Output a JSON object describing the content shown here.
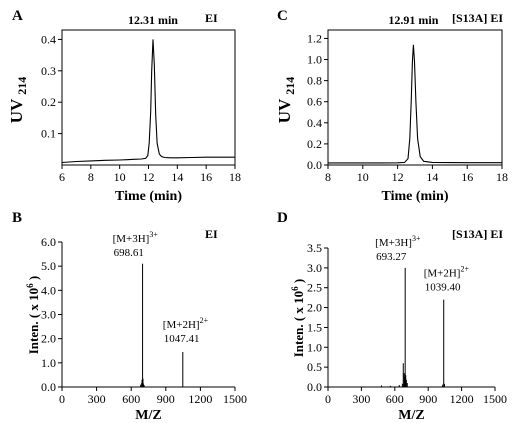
{
  "chart_data": [
    {
      "panel": "A",
      "type": "line",
      "tag": "EI",
      "annotation": "12.31 min",
      "annotation_x": 12.31,
      "xlabel": "Time (min)",
      "ylabel_main": "UV",
      "ylabel_sub": "214",
      "xlim": [
        6,
        18
      ],
      "ylim": [
        0,
        0.43
      ],
      "xticks": [
        6,
        8,
        10,
        12,
        14,
        16,
        18
      ],
      "yticks": [
        0.1,
        0.2,
        0.3,
        0.4
      ],
      "ytick_labels": [
        "0.1",
        "0.2",
        "0.3",
        "0.4"
      ],
      "series": [
        {
          "x": [
            6.0,
            7.0,
            8.0,
            9.0,
            10.0,
            10.5,
            11.0,
            11.5,
            11.8,
            11.95,
            12.05,
            12.15,
            12.22,
            12.31,
            12.4,
            12.5,
            12.6,
            12.75,
            12.9,
            13.1,
            13.5,
            14.0,
            15.0,
            16.0,
            17.0,
            18.0
          ],
          "y": [
            0.008,
            0.011,
            0.013,
            0.015,
            0.016,
            0.017,
            0.018,
            0.019,
            0.021,
            0.03,
            0.07,
            0.17,
            0.3,
            0.4,
            0.32,
            0.16,
            0.07,
            0.035,
            0.027,
            0.024,
            0.023,
            0.023,
            0.024,
            0.025,
            0.025,
            0.025
          ]
        }
      ]
    },
    {
      "panel": "C",
      "type": "line",
      "tag": "[S13A] EI",
      "annotation": "12.91 min",
      "annotation_x": 12.91,
      "xlabel": "Time (min)",
      "ylabel_main": "UV",
      "ylabel_sub": "214",
      "xlim": [
        8,
        18
      ],
      "ylim": [
        0,
        1.28
      ],
      "xticks": [
        8,
        10,
        12,
        14,
        16,
        18
      ],
      "yticks": [
        0.0,
        0.2,
        0.4,
        0.6,
        0.8,
        1.0,
        1.2
      ],
      "ytick_labels": [
        "0.0",
        "0.2",
        "0.4",
        "0.6",
        "0.8",
        "1.0",
        "1.2"
      ],
      "series": [
        {
          "x": [
            8.0,
            9.0,
            10.0,
            11.0,
            12.0,
            12.4,
            12.6,
            12.7,
            12.78,
            12.85,
            12.91,
            12.97,
            13.05,
            13.15,
            13.3,
            13.5,
            14.0,
            15.0,
            16.0,
            17.0,
            18.0
          ],
          "y": [
            0.02,
            0.02,
            0.02,
            0.02,
            0.021,
            0.025,
            0.06,
            0.25,
            0.6,
            0.98,
            1.14,
            0.98,
            0.6,
            0.25,
            0.08,
            0.035,
            0.025,
            0.023,
            0.022,
            0.022,
            0.022
          ]
        }
      ]
    },
    {
      "panel": "B",
      "type": "bar",
      "tag": "EI",
      "xlabel": "M/Z",
      "ylabel_prefix": "Inten. ( x 10",
      "ylabel_exp": "6",
      "ylabel_suffix": " )",
      "xlim": [
        0,
        1500
      ],
      "ylim": [
        0,
        6.0
      ],
      "xticks": [
        0,
        300,
        600,
        900,
        1200,
        1500
      ],
      "yticks": [
        0.0,
        1.0,
        2.0,
        3.0,
        4.0,
        5.0,
        6.0
      ],
      "ytick_labels": [
        "0.0",
        "1.0",
        "2.0",
        "3.0",
        "4.0",
        "5.0",
        "6.0"
      ],
      "peaks": [
        {
          "x": 682,
          "y": 0.1
        },
        {
          "x": 690,
          "y": 0.16
        },
        {
          "x": 694,
          "y": 0.3
        },
        {
          "x": 698.61,
          "y": 5.1
        },
        {
          "x": 702,
          "y": 0.35
        },
        {
          "x": 706,
          "y": 0.14
        },
        {
          "x": 712,
          "y": 0.08
        },
        {
          "x": 1047.41,
          "y": 1.45
        }
      ],
      "peak_labels": [
        {
          "ion": "[M+3H]",
          "charge": "3+",
          "mz": "698.61",
          "x": 698.61,
          "y": 5.1
        },
        {
          "ion": "[M+2H]",
          "charge": "2+",
          "mz": "1047.41",
          "x": 1047.41,
          "y": 1.45
        }
      ]
    },
    {
      "panel": "D",
      "type": "bar",
      "tag": "[S13A] EI",
      "xlabel": "M/Z",
      "ylabel_prefix": "Inten. ( x 10",
      "ylabel_exp": "6",
      "ylabel_suffix": " )",
      "xlim": [
        0,
        1500
      ],
      "ylim": [
        0,
        3.5
      ],
      "xticks": [
        0,
        300,
        600,
        900,
        1200,
        1500
      ],
      "yticks": [
        0.0,
        0.5,
        1.0,
        1.5,
        2.0,
        2.5,
        3.0,
        3.5
      ],
      "ytick_labels": [
        "0.0",
        "0.5",
        "1.0",
        "1.5",
        "2.0",
        "2.5",
        "3.0",
        "3.5"
      ],
      "peaks": [
        {
          "x": 480,
          "y": 0.04
        },
        {
          "x": 560,
          "y": 0.03
        },
        {
          "x": 640,
          "y": 0.05
        },
        {
          "x": 668,
          "y": 0.08
        },
        {
          "x": 676,
          "y": 0.6
        },
        {
          "x": 684,
          "y": 0.35
        },
        {
          "x": 688,
          "y": 0.25
        },
        {
          "x": 693.27,
          "y": 3.0
        },
        {
          "x": 698,
          "y": 0.3
        },
        {
          "x": 704,
          "y": 0.18
        },
        {
          "x": 712,
          "y": 0.1
        },
        {
          "x": 1030,
          "y": 0.06
        },
        {
          "x": 1039.4,
          "y": 2.2
        },
        {
          "x": 1046,
          "y": 0.08
        }
      ],
      "peak_labels": [
        {
          "ion": "[M+3H]",
          "charge": "3+",
          "mz": "693.27",
          "x": 693.27,
          "y": 3.0
        },
        {
          "ion": "[M+2H]",
          "charge": "2+",
          "mz": "1039.40",
          "x": 1039.4,
          "y": 2.2
        }
      ]
    }
  ]
}
